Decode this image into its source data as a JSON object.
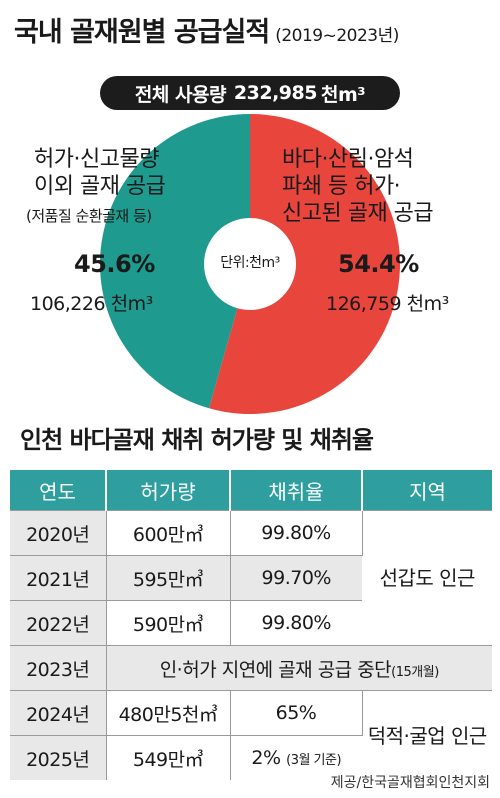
{
  "title": "국내 골재원별 공급실적",
  "period": "(2019~2023년)",
  "total": {
    "label": "전체 사용량",
    "value": "232,985",
    "unit": "천m³"
  },
  "chart_data": {
    "type": "pie",
    "unit_label": "단위:천m³",
    "slices": [
      {
        "desc_lines": [
          "허가·신고물량",
          "이외 골재 공급"
        ],
        "sub": "(저품질 순환골재 등)",
        "percent_label": "45.6%",
        "value_label": "106,226 천m³",
        "value": 106226,
        "percent": 45.6,
        "color": "#1f9a8e"
      },
      {
        "desc_lines": [
          "바다·산림·암석",
          "파쇄 등 허가·",
          "신고된 골재 공급"
        ],
        "percent_label": "54.4%",
        "value_label": "126,759 천m³",
        "value": 126759,
        "percent": 54.4,
        "color": "#e8453c"
      }
    ]
  },
  "table": {
    "title": "인천 바다골재 채취 허가량 및 채취율",
    "headers": [
      "연도",
      "허가량",
      "채취율",
      "지역"
    ],
    "rows": [
      {
        "year": "2020년",
        "amount": "600만㎥",
        "rate": "99.80%"
      },
      {
        "year": "2021년",
        "amount": "595만㎥",
        "rate": "99.70%"
      },
      {
        "year": "2022년",
        "amount": "590만㎥",
        "rate": "99.80%"
      },
      {
        "year": "2023년",
        "note": "인·허가 지연에 골재 공급 중단",
        "note_small": "(15개월)"
      },
      {
        "year": "2024년",
        "amount": "480만5천㎥",
        "rate": "65%"
      },
      {
        "year": "2025년",
        "amount": "549만㎥",
        "rate": "2%",
        "rate_small": "(3월 기준)"
      }
    ],
    "regions": [
      "선갑도 인근",
      "덕적·굴업 인근"
    ]
  },
  "source": "제공/한국골재협회인천지회"
}
